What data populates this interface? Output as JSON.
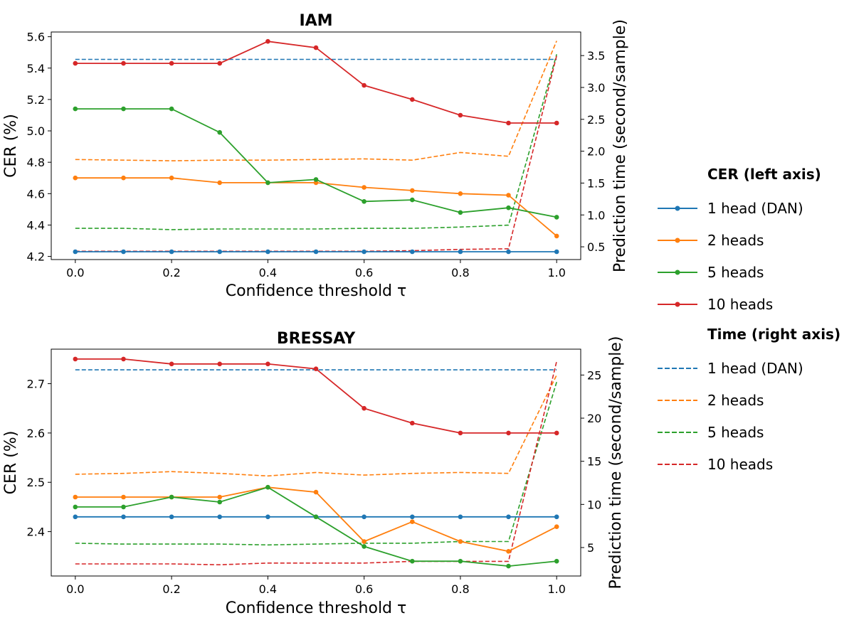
{
  "chart_data": [
    {
      "type": "line",
      "title": "IAM",
      "xlabel": "Confidence threshold τ",
      "ylabel": "CER (%)",
      "y2label": "Prediction time (second/sample)",
      "x": [
        0.0,
        0.1,
        0.2,
        0.3,
        0.4,
        0.5,
        0.6,
        0.7,
        0.8,
        0.9,
        1.0
      ],
      "xlim": [
        -0.05,
        1.05
      ],
      "xticks": [
        "0.0",
        "0.2",
        "0.4",
        "0.6",
        "0.8",
        "1.0"
      ],
      "ylim": [
        4.18,
        5.63
      ],
      "yticks": [
        "4.2",
        "4.4",
        "4.6",
        "4.8",
        "5.0",
        "5.2",
        "5.4",
        "5.6"
      ],
      "y2lim": [
        0.3,
        3.87
      ],
      "y2ticks": [
        "0.5",
        "1.0",
        "1.5",
        "2.0",
        "2.5",
        "3.0",
        "3.5"
      ],
      "cer_series": [
        {
          "name": "1 head (DAN)",
          "values": [
            4.23,
            4.23,
            4.23,
            4.23,
            4.23,
            4.23,
            4.23,
            4.23,
            4.23,
            4.23,
            4.23
          ]
        },
        {
          "name": "2 heads",
          "values": [
            4.7,
            4.7,
            4.7,
            4.67,
            4.67,
            4.67,
            4.64,
            4.62,
            4.6,
            4.59,
            4.33
          ]
        },
        {
          "name": "5 heads",
          "values": [
            5.14,
            5.14,
            5.14,
            4.99,
            4.67,
            4.69,
            4.55,
            4.56,
            4.48,
            4.51,
            4.45
          ]
        },
        {
          "name": "10 heads",
          "values": [
            5.43,
            5.43,
            5.43,
            5.43,
            5.57,
            5.53,
            5.29,
            5.2,
            5.1,
            5.05,
            5.05
          ]
        }
      ],
      "time_series": [
        {
          "name": "1 head (DAN)",
          "values": [
            3.44,
            3.44,
            3.44,
            3.44,
            3.44,
            3.44,
            3.44,
            3.44,
            3.44,
            3.44,
            3.44
          ]
        },
        {
          "name": "2 heads",
          "values": [
            1.87,
            1.86,
            1.85,
            1.86,
            1.86,
            1.87,
            1.88,
            1.86,
            1.98,
            1.92,
            3.73
          ]
        },
        {
          "name": "5 heads",
          "values": [
            0.79,
            0.79,
            0.77,
            0.78,
            0.78,
            0.78,
            0.79,
            0.79,
            0.81,
            0.84,
            3.52
          ]
        },
        {
          "name": "10 heads",
          "values": [
            0.43,
            0.43,
            0.43,
            0.43,
            0.43,
            0.43,
            0.43,
            0.44,
            0.46,
            0.47,
            3.5
          ]
        }
      ]
    },
    {
      "type": "line",
      "title": "BRESSAY",
      "xlabel": "Confidence threshold τ",
      "ylabel": "CER (%)",
      "y2label": "Prediction time (second/sample)",
      "x": [
        0.0,
        0.1,
        0.2,
        0.3,
        0.4,
        0.5,
        0.6,
        0.7,
        0.8,
        0.9,
        1.0
      ],
      "xlim": [
        -0.05,
        1.05
      ],
      "xticks": [
        "0.0",
        "0.2",
        "0.4",
        "0.6",
        "0.8",
        "1.0"
      ],
      "ylim": [
        2.31,
        2.77
      ],
      "yticks": [
        "2.4",
        "2.5",
        "2.6",
        "2.7"
      ],
      "y2lim": [
        1.7,
        28.0
      ],
      "y2ticks": [
        "5",
        "10",
        "15",
        "20",
        "25"
      ],
      "cer_series": [
        {
          "name": "1 head (DAN)",
          "values": [
            2.43,
            2.43,
            2.43,
            2.43,
            2.43,
            2.43,
            2.43,
            2.43,
            2.43,
            2.43,
            2.43
          ]
        },
        {
          "name": "2 heads",
          "values": [
            2.47,
            2.47,
            2.47,
            2.47,
            2.49,
            2.48,
            2.38,
            2.42,
            2.38,
            2.36,
            2.41
          ]
        },
        {
          "name": "5 heads",
          "values": [
            2.45,
            2.45,
            2.47,
            2.46,
            2.49,
            2.43,
            2.37,
            2.34,
            2.34,
            2.33,
            2.34
          ]
        },
        {
          "name": "10 heads",
          "values": [
            2.75,
            2.75,
            2.74,
            2.74,
            2.74,
            2.73,
            2.65,
            2.62,
            2.6,
            2.6,
            2.6
          ]
        }
      ],
      "time_series": [
        {
          "name": "1 head (DAN)",
          "values": [
            25.6,
            25.6,
            25.6,
            25.6,
            25.6,
            25.6,
            25.6,
            25.6,
            25.6,
            25.6,
            25.6
          ]
        },
        {
          "name": "2 heads",
          "values": [
            13.5,
            13.6,
            13.8,
            13.6,
            13.3,
            13.7,
            13.4,
            13.6,
            13.7,
            13.6,
            25.0
          ]
        },
        {
          "name": "5 heads",
          "values": [
            5.5,
            5.4,
            5.4,
            5.4,
            5.3,
            5.4,
            5.5,
            5.5,
            5.7,
            5.7,
            24.2
          ]
        },
        {
          "name": "10 heads",
          "values": [
            3.1,
            3.1,
            3.1,
            3.0,
            3.2,
            3.2,
            3.2,
            3.4,
            3.4,
            3.4,
            26.6
          ]
        }
      ]
    }
  ],
  "legend": {
    "cer_heading": "CER (left axis)",
    "time_heading": "Time (right axis)",
    "entries": [
      "1 head (DAN)",
      "2 heads",
      "5 heads",
      "10 heads"
    ],
    "colors": [
      "#1f77b4",
      "#ff7f0e",
      "#2ca02c",
      "#d62728"
    ]
  }
}
